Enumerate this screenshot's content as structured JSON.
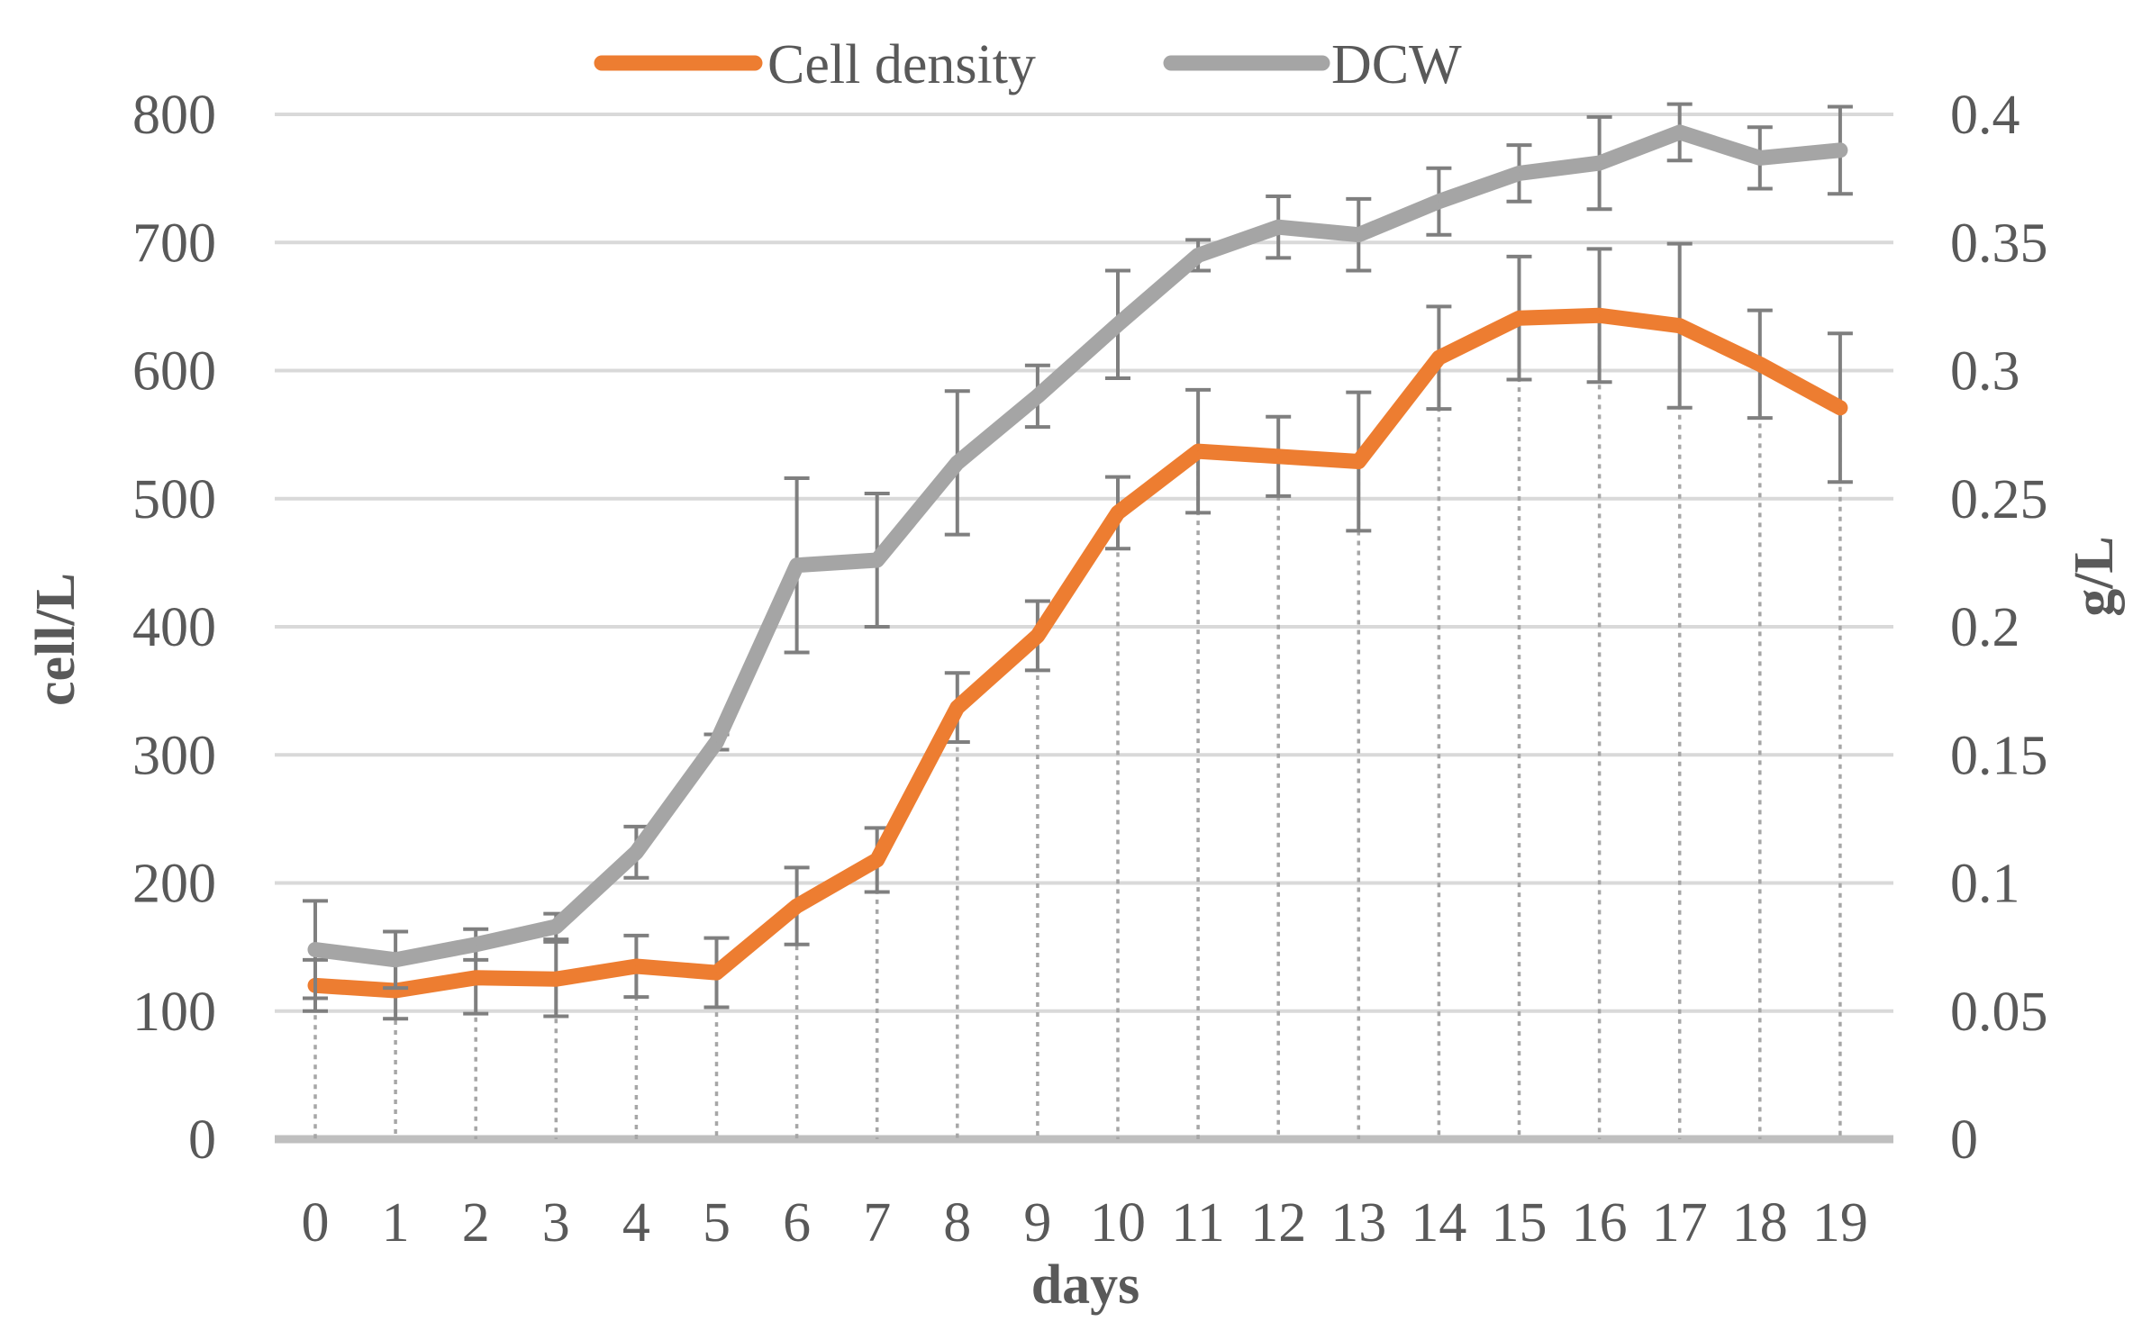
{
  "chart_data": {
    "type": "line",
    "title": "",
    "xlabel": "days",
    "ylabel_left": "cell/L",
    "ylabel_right": "g/L",
    "categories": [
      "0",
      "1",
      "2",
      "3",
      "4",
      "5",
      "6",
      "7",
      "8",
      "9",
      "10",
      "11",
      "12",
      "13",
      "14",
      "15",
      "16",
      "17",
      "18",
      "19"
    ],
    "ylim_left": [
      0,
      800
    ],
    "ylim_right": [
      0,
      0.4
    ],
    "yticks_left": [
      "0",
      "100",
      "200",
      "300",
      "400",
      "500",
      "600",
      "700",
      "800"
    ],
    "yticks_right": [
      "0",
      "0.05",
      "0.1",
      "0.15",
      "0.2",
      "0.25",
      "0.3",
      "0.35",
      "0.4"
    ],
    "grid": true,
    "legend_position": "top-center",
    "series": [
      {
        "name": "Cell density",
        "axis": "left",
        "color": "#ED7D31",
        "values": [
          120,
          116,
          126,
          125,
          135,
          130,
          182,
          218,
          337,
          393,
          489,
          537,
          533,
          529,
          610,
          641,
          643,
          635,
          605,
          571
        ],
        "errors": [
          20,
          22,
          28,
          29,
          24,
          27,
          30,
          25,
          27,
          27,
          28,
          48,
          31,
          54,
          40,
          48,
          52,
          64,
          42,
          58
        ]
      },
      {
        "name": "DCW",
        "axis": "right",
        "color": "#A5A5A5",
        "values": [
          0.074,
          0.07,
          0.076,
          0.083,
          0.112,
          0.155,
          0.224,
          0.226,
          0.264,
          0.29,
          0.318,
          0.345,
          0.356,
          0.353,
          0.366,
          0.377,
          0.381,
          0.393,
          0.383,
          0.386
        ],
        "errors": [
          0.019,
          0.011,
          0.006,
          0.005,
          0.01,
          0.003,
          0.034,
          0.026,
          0.028,
          0.012,
          0.021,
          0.006,
          0.012,
          0.014,
          0.013,
          0.011,
          0.018,
          0.011,
          0.012,
          0.017
        ]
      }
    ]
  }
}
